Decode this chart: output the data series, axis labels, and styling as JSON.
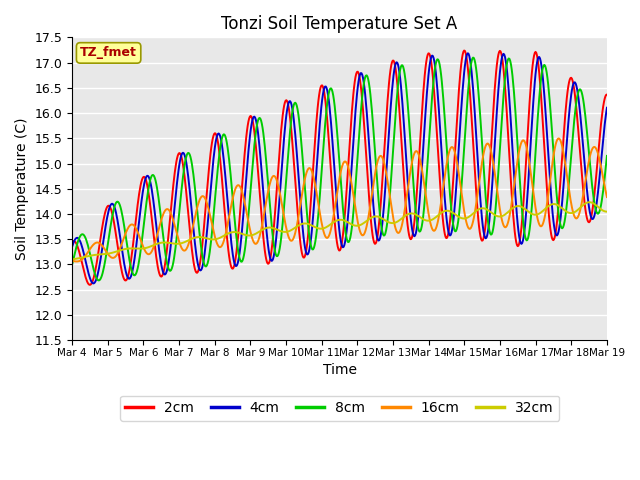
{
  "title": "Tonzi Soil Temperature Set A",
  "xlabel": "Time",
  "ylabel": "Soil Temperature (C)",
  "ylim": [
    11.5,
    17.5
  ],
  "yticks": [
    11.5,
    12.0,
    12.5,
    13.0,
    13.5,
    14.0,
    14.5,
    15.0,
    15.5,
    16.0,
    16.5,
    17.0,
    17.5
  ],
  "bg_color": "#e8e8e8",
  "fig_bg_color": "#ffffff",
  "grid_color": "#ffffff",
  "line_colors": {
    "2cm": "#ff0000",
    "4cm": "#0000cc",
    "8cm": "#00cc00",
    "16cm": "#ff8800",
    "32cm": "#cccc00"
  },
  "legend_label": "TZ_fmet",
  "legend_text_color": "#aa0000",
  "legend_bg_color": "#ffff99",
  "legend_border_color": "#999900",
  "n_days": 15,
  "start_date": 4,
  "points_per_day": 48
}
